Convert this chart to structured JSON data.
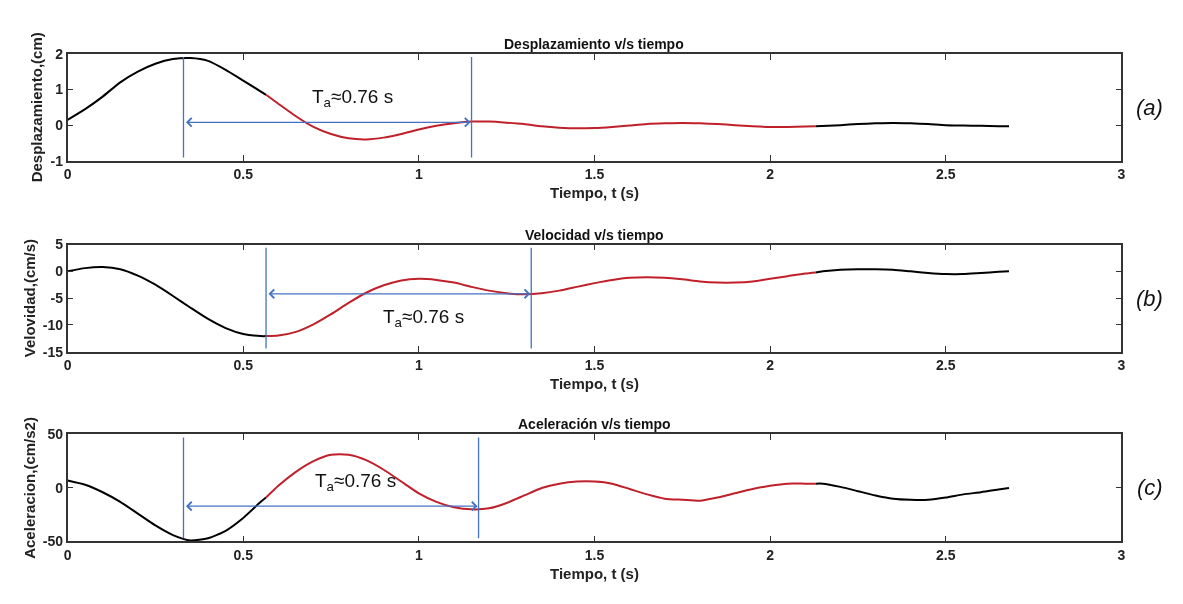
{
  "chart_data": [
    {
      "type": "line",
      "title": "Desplazamiento v/s tiempo",
      "xlabel": "Tiempo, t (s)",
      "ylabel": "Desplazamiento,(cm)",
      "xlim": [
        0,
        3
      ],
      "xticks": [
        0,
        0.5,
        1,
        1.5,
        2,
        2.5,
        3
      ],
      "ylim": [
        -1,
        2
      ],
      "yticks": [
        -1,
        0,
        1,
        2
      ],
      "series": [
        {
          "color": "#000000",
          "x": [
            0,
            0.05,
            0.1,
            0.15,
            0.2,
            0.25,
            0.3,
            0.35,
            0.4,
            0.45,
            0.5,
            0.565
          ],
          "values": [
            0.15,
            0.45,
            0.8,
            1.2,
            1.5,
            1.72,
            1.85,
            1.88,
            1.8,
            1.55,
            1.25,
            0.85
          ]
        },
        {
          "color": "#c0202a",
          "x": [
            0.565,
            0.6,
            0.65,
            0.7,
            0.75,
            0.8,
            0.85,
            0.9,
            0.95,
            1.0,
            1.05,
            1.1,
            1.15,
            1.2,
            1.25,
            1.3,
            1.35,
            1.4,
            1.45,
            1.5,
            1.55,
            1.6,
            1.65,
            1.7,
            1.75,
            1.8,
            1.85,
            1.9,
            1.95,
            2.0,
            2.05,
            2.1,
            2.13
          ],
          "values": [
            0.85,
            0.6,
            0.25,
            -0.05,
            -0.25,
            -0.37,
            -0.4,
            -0.35,
            -0.25,
            -0.12,
            -0.02,
            0.05,
            0.1,
            0.1,
            0.07,
            0.03,
            -0.03,
            -0.07,
            -0.09,
            -0.08,
            -0.05,
            -0.01,
            0.03,
            0.05,
            0.06,
            0.05,
            0.03,
            0.0,
            -0.03,
            -0.05,
            -0.05,
            -0.04,
            -0.03
          ]
        },
        {
          "color": "#000000",
          "x": [
            2.13,
            2.2,
            2.25,
            2.3,
            2.35,
            2.4,
            2.45,
            2.5,
            2.55,
            2.6,
            2.65,
            2.68
          ],
          "values": [
            -0.03,
            0.0,
            0.03,
            0.05,
            0.06,
            0.05,
            0.03,
            0.0,
            -0.01,
            -0.02,
            -0.03,
            -0.03
          ]
        }
      ],
      "ref_lines": [
        {
          "axis": "x",
          "value": 0.33,
          "color": "#4472c4"
        },
        {
          "axis": "x",
          "value": 1.15,
          "color": "#4472c4"
        },
        {
          "axis": "y",
          "value": 0.08,
          "color": "#4472c4"
        }
      ],
      "annotations": [
        "T$_{a}$≈0.76 s",
        "(a)"
      ]
    },
    {
      "type": "line",
      "title": "Velocidad v/s tiempo",
      "xlabel": "Tiempo, t (s)",
      "ylabel": "Velovidad,(cm/s)",
      "xlim": [
        0,
        3
      ],
      "xticks": [
        0,
        0.5,
        1,
        1.5,
        2,
        2.5,
        3
      ],
      "ylim": [
        -15,
        5
      ],
      "yticks": [
        -15,
        -10,
        -5,
        0,
        5
      ],
      "series": [
        {
          "color": "#000000",
          "x": [
            0,
            0.05,
            0.1,
            0.15,
            0.2,
            0.25,
            0.3,
            0.35,
            0.4,
            0.45,
            0.5,
            0.55,
            0.565
          ],
          "values": [
            0,
            0.6,
            0.8,
            0.4,
            -0.8,
            -2.5,
            -4.6,
            -6.8,
            -8.9,
            -10.6,
            -11.7,
            -12.1,
            -12.1
          ]
        },
        {
          "color": "#c0202a",
          "x": [
            0.565,
            0.6,
            0.65,
            0.7,
            0.75,
            0.8,
            0.85,
            0.9,
            0.95,
            1.0,
            1.05,
            1.1,
            1.15,
            1.2,
            1.25,
            1.3,
            1.35,
            1.4,
            1.45,
            1.5,
            1.55,
            1.6,
            1.65,
            1.7,
            1.75,
            1.8,
            1.85,
            1.9,
            1.95,
            2.0,
            2.05,
            2.1,
            2.13
          ],
          "values": [
            -12.1,
            -12.0,
            -11.3,
            -9.9,
            -8.0,
            -5.9,
            -4.0,
            -2.6,
            -1.7,
            -1.4,
            -1.6,
            -2.1,
            -2.9,
            -3.6,
            -4.1,
            -4.3,
            -4.1,
            -3.6,
            -2.9,
            -2.2,
            -1.6,
            -1.2,
            -1.1,
            -1.2,
            -1.5,
            -1.9,
            -2.1,
            -2.1,
            -1.9,
            -1.4,
            -0.9,
            -0.4,
            -0.2
          ]
        },
        {
          "color": "#000000",
          "x": [
            2.13,
            2.15,
            2.2,
            2.25,
            2.3,
            2.35,
            2.4,
            2.45,
            2.5,
            2.55,
            2.6,
            2.65,
            2.68
          ],
          "values": [
            -0.2,
            0.0,
            0.3,
            0.4,
            0.4,
            0.3,
            0.0,
            -0.3,
            -0.5,
            -0.5,
            -0.3,
            -0.1,
            0.0
          ]
        }
      ],
      "ref_lines": [
        {
          "axis": "x",
          "value": 0.565,
          "color": "#4472c4"
        },
        {
          "axis": "x",
          "value": 1.32,
          "color": "#4472c4"
        },
        {
          "axis": "y",
          "value": -4.2,
          "color": "#4472c4"
        }
      ],
      "annotations": [
        "T$_{a}$≈0.76 s",
        "(b)"
      ]
    },
    {
      "type": "line",
      "title": "Aceleración v/s tiempo",
      "xlabel": "Tiempo, t (s)",
      "ylabel": "Aceleracion,(cm/s2)",
      "xlim": [
        0,
        3
      ],
      "xticks": [
        0,
        0.5,
        1,
        1.5,
        2,
        2.5,
        3
      ],
      "ylim": [
        -50,
        50
      ],
      "yticks": [
        -50,
        0,
        50
      ],
      "series": [
        {
          "color": "#000000",
          "x": [
            0,
            0.05,
            0.1,
            0.15,
            0.2,
            0.25,
            0.3,
            0.35,
            0.4,
            0.45,
            0.5,
            0.55,
            0.565
          ],
          "values": [
            7,
            3,
            -4,
            -13,
            -24,
            -35,
            -44,
            -49,
            -47,
            -40,
            -28,
            -13,
            -9
          ]
        },
        {
          "color": "#c0202a",
          "x": [
            0.565,
            0.6,
            0.65,
            0.7,
            0.75,
            0.8,
            0.85,
            0.9,
            0.95,
            1.0,
            1.05,
            1.1,
            1.15,
            1.2,
            1.25,
            1.3,
            1.35,
            1.4,
            1.45,
            1.5,
            1.55,
            1.6,
            1.65,
            1.7,
            1.75,
            1.8,
            1.85,
            1.9,
            1.95,
            2.0,
            2.05,
            2.1,
            2.13
          ],
          "values": [
            -9,
            2,
            15,
            25,
            31,
            31,
            26,
            17,
            6,
            -5,
            -13,
            -18,
            -20,
            -19,
            -14,
            -7,
            0,
            4,
            6,
            6,
            4,
            -1,
            -6,
            -10,
            -11,
            -12,
            -9,
            -5,
            -1,
            2,
            4,
            4,
            4
          ]
        },
        {
          "color": "#000000",
          "x": [
            2.13,
            2.15,
            2.2,
            2.25,
            2.3,
            2.35,
            2.4,
            2.45,
            2.5,
            2.55,
            2.6,
            2.65,
            2.68
          ],
          "values": [
            4,
            4,
            1,
            -3,
            -7,
            -10,
            -11,
            -11,
            -9,
            -6,
            -4,
            -1.5,
            0
          ]
        }
      ],
      "ref_lines": [
        {
          "axis": "x",
          "value": 0.33,
          "color": "#4472c4"
        },
        {
          "axis": "x",
          "value": 1.17,
          "color": "#4472c4"
        },
        {
          "axis": "y",
          "value": -17,
          "color": "#4472c4"
        }
      ],
      "annotations": [
        "T$_{a}$≈0.76 s",
        "(c)"
      ]
    }
  ]
}
